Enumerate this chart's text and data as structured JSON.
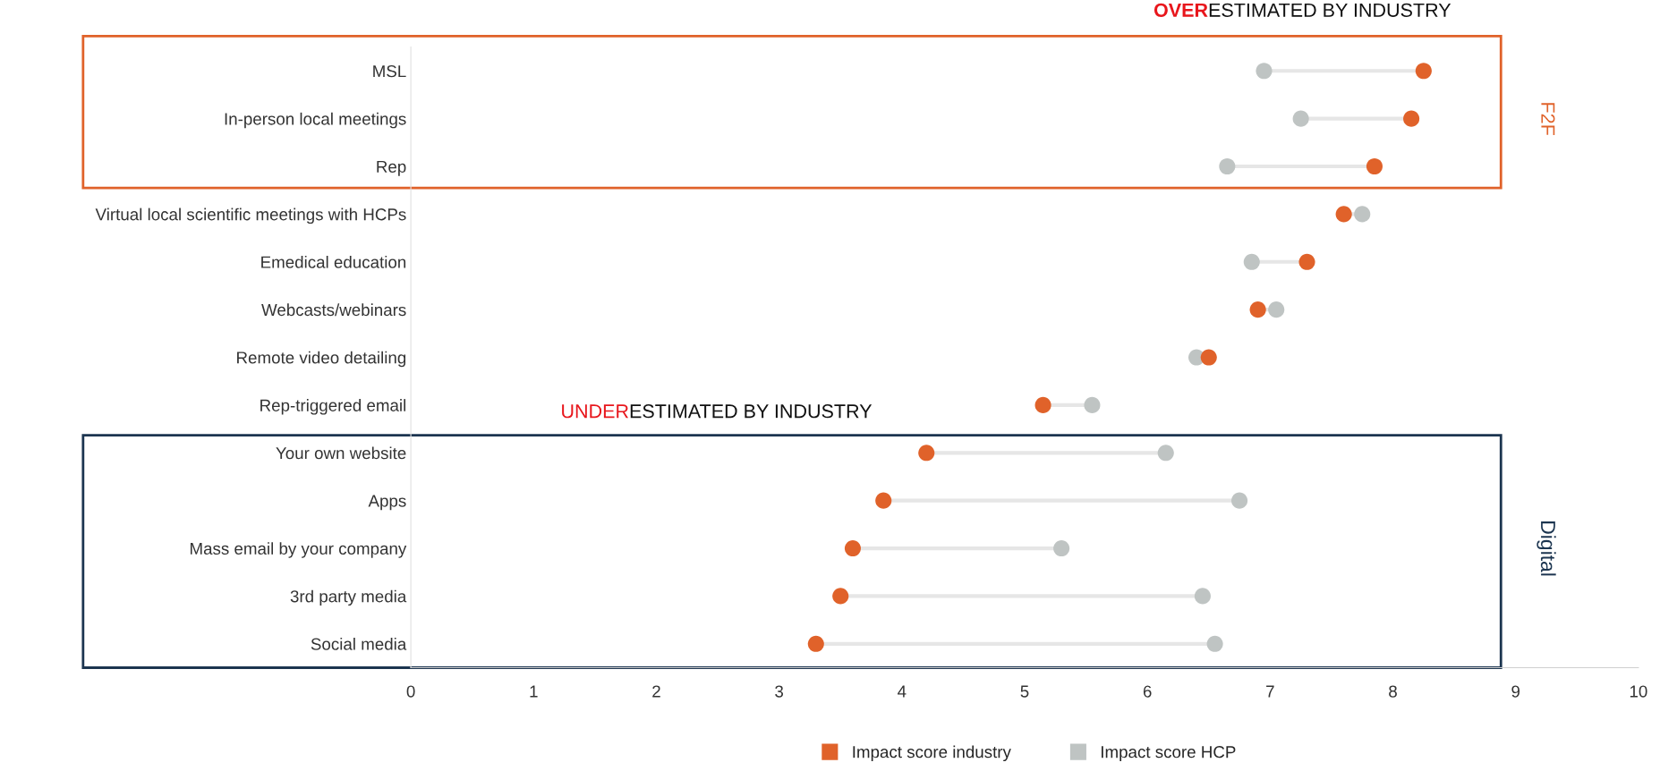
{
  "chart_data": {
    "type": "scatter",
    "orientation": "horizontal",
    "categories": [
      "MSL",
      "In-person local meetings",
      "Rep",
      "Virtual local scientific meetings with HCPs",
      "Emedical education",
      "Webcasts/webinars",
      "Remote video detailing",
      "Rep-triggered email",
      "Your own website",
      "Apps",
      "Mass email by your company",
      "3rd party media",
      "Social media"
    ],
    "series": [
      {
        "name": "Impact score industry",
        "color": "#e0622a",
        "values": [
          8.25,
          8.15,
          7.85,
          7.6,
          7.3,
          6.9,
          6.5,
          5.15,
          4.2,
          3.85,
          3.6,
          3.5,
          3.3
        ]
      },
      {
        "name": "Impact score HCP",
        "color": "#bfc4c3",
        "values": [
          6.95,
          7.25,
          6.65,
          7.75,
          6.85,
          7.05,
          6.4,
          5.55,
          6.15,
          6.75,
          5.3,
          6.45,
          6.55
        ]
      }
    ],
    "xlim": [
      0,
      10
    ],
    "xticks": [
      0,
      1,
      2,
      3,
      4,
      5,
      6,
      7,
      8,
      9,
      10
    ],
    "marker": "circle",
    "grid": false,
    "legend": "bottom",
    "annotations": [
      "OVER",
      "ESTIMATED BY INDUSTRY",
      "UNDER",
      "ESTIMATED BY INDUSTRY",
      "F2F",
      "Digital"
    ]
  }
}
